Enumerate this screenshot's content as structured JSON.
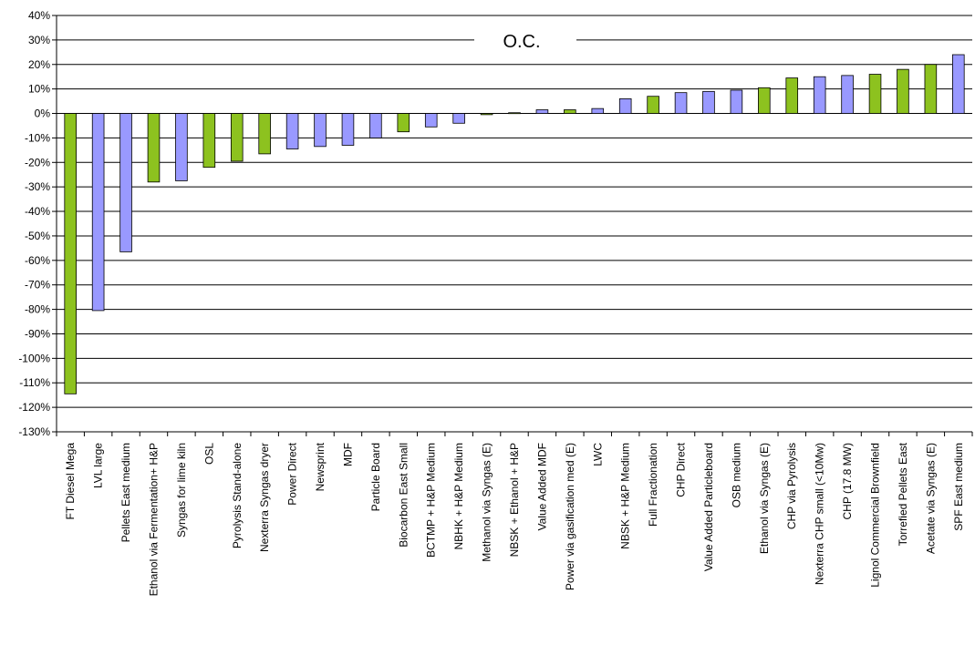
{
  "chart_data": {
    "type": "bar",
    "title": "",
    "xlabel": "",
    "ylabel": "",
    "ylim": [
      -130,
      40
    ],
    "ytick_step": 10,
    "ytick_suffix": "%",
    "grid": true,
    "legend": "none",
    "annotation": "O.C.",
    "colors": {
      "green": "#8DC21F",
      "blue": "#9999FF",
      "edge": "#000000"
    },
    "categories": [
      "FT Diesel Mega",
      "LVL large",
      "Pellets East medium",
      "Ethanol via Fermentation+ H&P",
      "Syngas for lime kiln",
      "OSL",
      "Pyrolysis Stand-alone",
      "Nexterra Syngas dryer",
      "Power Direct",
      "Newsprint",
      "MDF",
      "Particle Board",
      "Biocarbon East Small",
      "BCTMP + H&P Medium",
      "NBHK + H&P Medium",
      "Methanol via Syngas (E)",
      "NBSK + Ethanol + H&P",
      "Value Added MDF",
      "Power via gasification med (E)",
      "LWC",
      "NBSK + H&P Medium",
      "Full Fractionation",
      "CHP Direct",
      "Value Added Particleboard",
      "OSB medium",
      "Ethanol via Syngas (E)",
      "CHP via Pyrolysis",
      "Nexterra CHP small (<10Mw)",
      "CHP (17.8 MW)",
      "Lignol Commercial Brownfield",
      "Torrefied Pellets East",
      "Acetate via Syngas (E)",
      "SPF East medium"
    ],
    "values": [
      -114.5,
      -80.5,
      -56.5,
      -28,
      -27.5,
      -22,
      -19.5,
      -16.5,
      -14.5,
      -13.5,
      -13,
      -10,
      -7.5,
      -5.5,
      -4,
      -0.5,
      0.3,
      1.5,
      1.5,
      2,
      6,
      7,
      8.5,
      9,
      9.5,
      10.5,
      14.5,
      15,
      15.5,
      16,
      18,
      20,
      24
    ],
    "bar_colors": [
      "green",
      "blue",
      "blue",
      "green",
      "blue",
      "green",
      "green",
      "green",
      "blue",
      "blue",
      "blue",
      "blue",
      "green",
      "blue",
      "blue",
      "green",
      "green",
      "blue",
      "green",
      "blue",
      "blue",
      "green",
      "blue",
      "blue",
      "blue",
      "green",
      "green",
      "blue",
      "blue",
      "green",
      "green",
      "green",
      "blue"
    ]
  }
}
